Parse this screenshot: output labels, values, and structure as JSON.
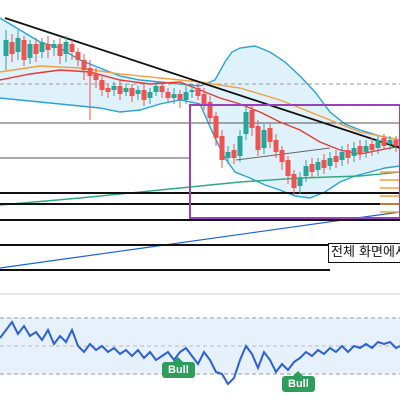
{
  "tooltip": {
    "text": "전체 화면에서"
  },
  "badges": [
    {
      "label": "Bull",
      "color": "#2e9c5a"
    },
    {
      "label": "Bull",
      "color": "#2e9c5a"
    }
  ],
  "colors": {
    "up": "#26a69a",
    "down": "#ef5350",
    "bollinger": "#29a3d6",
    "bollinger_fill": "#dff1fb",
    "ma_red": "#e53935",
    "ma_orange": "#f0a040",
    "ma_green": "#2eab7d",
    "ma_blue": "#1e5fd6",
    "trendline": "#111111",
    "box": "#9b3fbd",
    "oscillator": "#2d5fd6",
    "oscillator_fill": "#e6f1fb"
  },
  "icons": [
    "bull-signal-label"
  ]
}
